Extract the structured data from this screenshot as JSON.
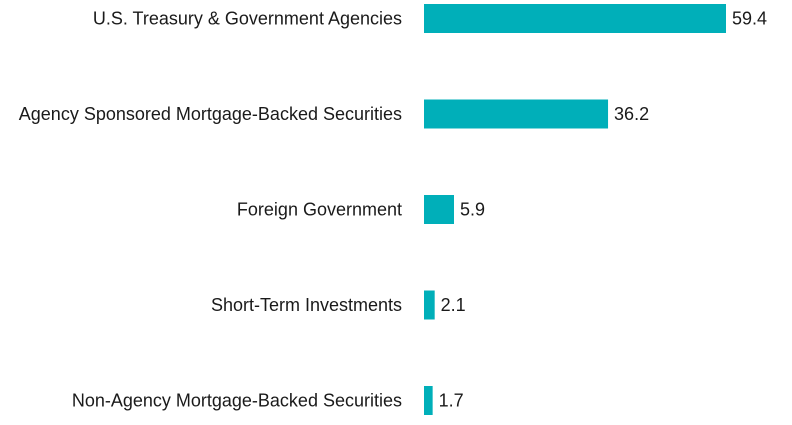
{
  "chart_data": {
    "type": "bar",
    "orientation": "horizontal",
    "categories": [
      "U.S. Treasury & Government Agencies",
      "Agency Sponsored Mortgage-Backed Securities",
      "Foreign Government",
      "Short-Term Investments",
      "Non-Agency Mortgage-Backed Securities"
    ],
    "values": [
      59.4,
      36.2,
      5.9,
      2.1,
      1.7
    ],
    "value_labels": [
      "59.4",
      "36.2",
      "5.9",
      "2.1",
      "1.7"
    ],
    "bar_color": "#00AFB9",
    "text_color": "#1a1a1a",
    "xlim": [
      0,
      59.4
    ],
    "grid": false,
    "legend": "none"
  }
}
